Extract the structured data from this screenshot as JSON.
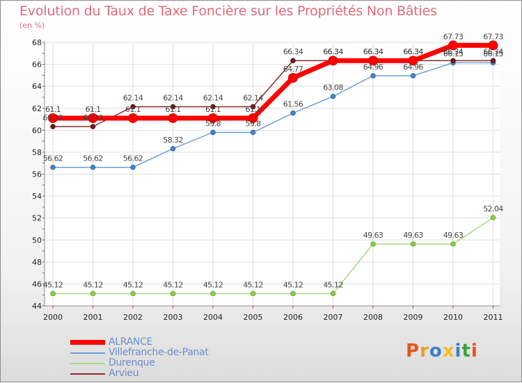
{
  "header": {
    "title": "Evolution du Taux de Taxe Foncière sur les Propriétés Non Bâties",
    "unit": "(en %)"
  },
  "logo": {
    "text": "Proxiti",
    "colors": [
      "#e8541e",
      "#f29a1f",
      "#3b7fc4",
      "#f2c01e",
      "#3b7fc4",
      "#3aa33a",
      "#e8541e"
    ]
  },
  "chart_data": {
    "type": "line",
    "x": [
      "2000",
      "2001",
      "2002",
      "2003",
      "2004",
      "2005",
      "2006",
      "2007",
      "2008",
      "2009",
      "2010",
      "2011"
    ],
    "ylim": [
      44,
      68
    ],
    "yticks": [
      44,
      46,
      48,
      50,
      52,
      54,
      56,
      58,
      60,
      62,
      64,
      66,
      68
    ],
    "grid": true,
    "legend_position": "bottom-left",
    "series": [
      {
        "name": "ALRANCE",
        "color": "#ff0000",
        "values": [
          61.1,
          61.1,
          61.1,
          61.1,
          61.1,
          61.1,
          64.77,
          66.34,
          66.34,
          66.34,
          67.73,
          67.73
        ],
        "labels": [
          "61.1",
          "61.1",
          "61.1",
          "61.1",
          "61.1",
          "61.1",
          "64.77",
          "66.34",
          "66.34",
          "66.34",
          "67.73",
          "67.73"
        ]
      },
      {
        "name": "Villefranche-de-Panat",
        "color": "#6a9fd8",
        "values": [
          56.62,
          56.62,
          56.62,
          58.32,
          59.8,
          59.8,
          61.56,
          63.08,
          64.96,
          64.96,
          66.15,
          66.15
        ],
        "labels": [
          "56.62",
          "56.62",
          "56.62",
          "58.32",
          "59.8",
          "59.8",
          "61.56",
          "63.08",
          "64.96",
          "64.96",
          "66.15",
          "66.15"
        ]
      },
      {
        "name": "Durenque",
        "color": "#a6d882",
        "values": [
          45.12,
          45.12,
          45.12,
          45.12,
          45.12,
          45.12,
          45.12,
          45.12,
          49.63,
          49.63,
          49.63,
          52.04
        ],
        "labels": [
          "45.12",
          "45.12",
          "45.12",
          "45.12",
          "45.12",
          "45.12",
          "45.12",
          "45.12",
          "49.63",
          "49.63",
          "49.63",
          "52.04"
        ]
      },
      {
        "name": "Arvieu",
        "color": "#8b2a2a",
        "values": [
          60.33,
          60.33,
          62.14,
          62.14,
          62.14,
          62.14,
          66.34,
          66.34,
          66.34,
          66.34,
          66.34,
          66.34
        ],
        "labels": [
          "60.33",
          "60.33",
          "62.14",
          "62.14",
          "62.14",
          "62.14",
          "66.34",
          "66.34",
          "66.34",
          "66.34",
          "66.34",
          "66.34"
        ]
      }
    ]
  }
}
